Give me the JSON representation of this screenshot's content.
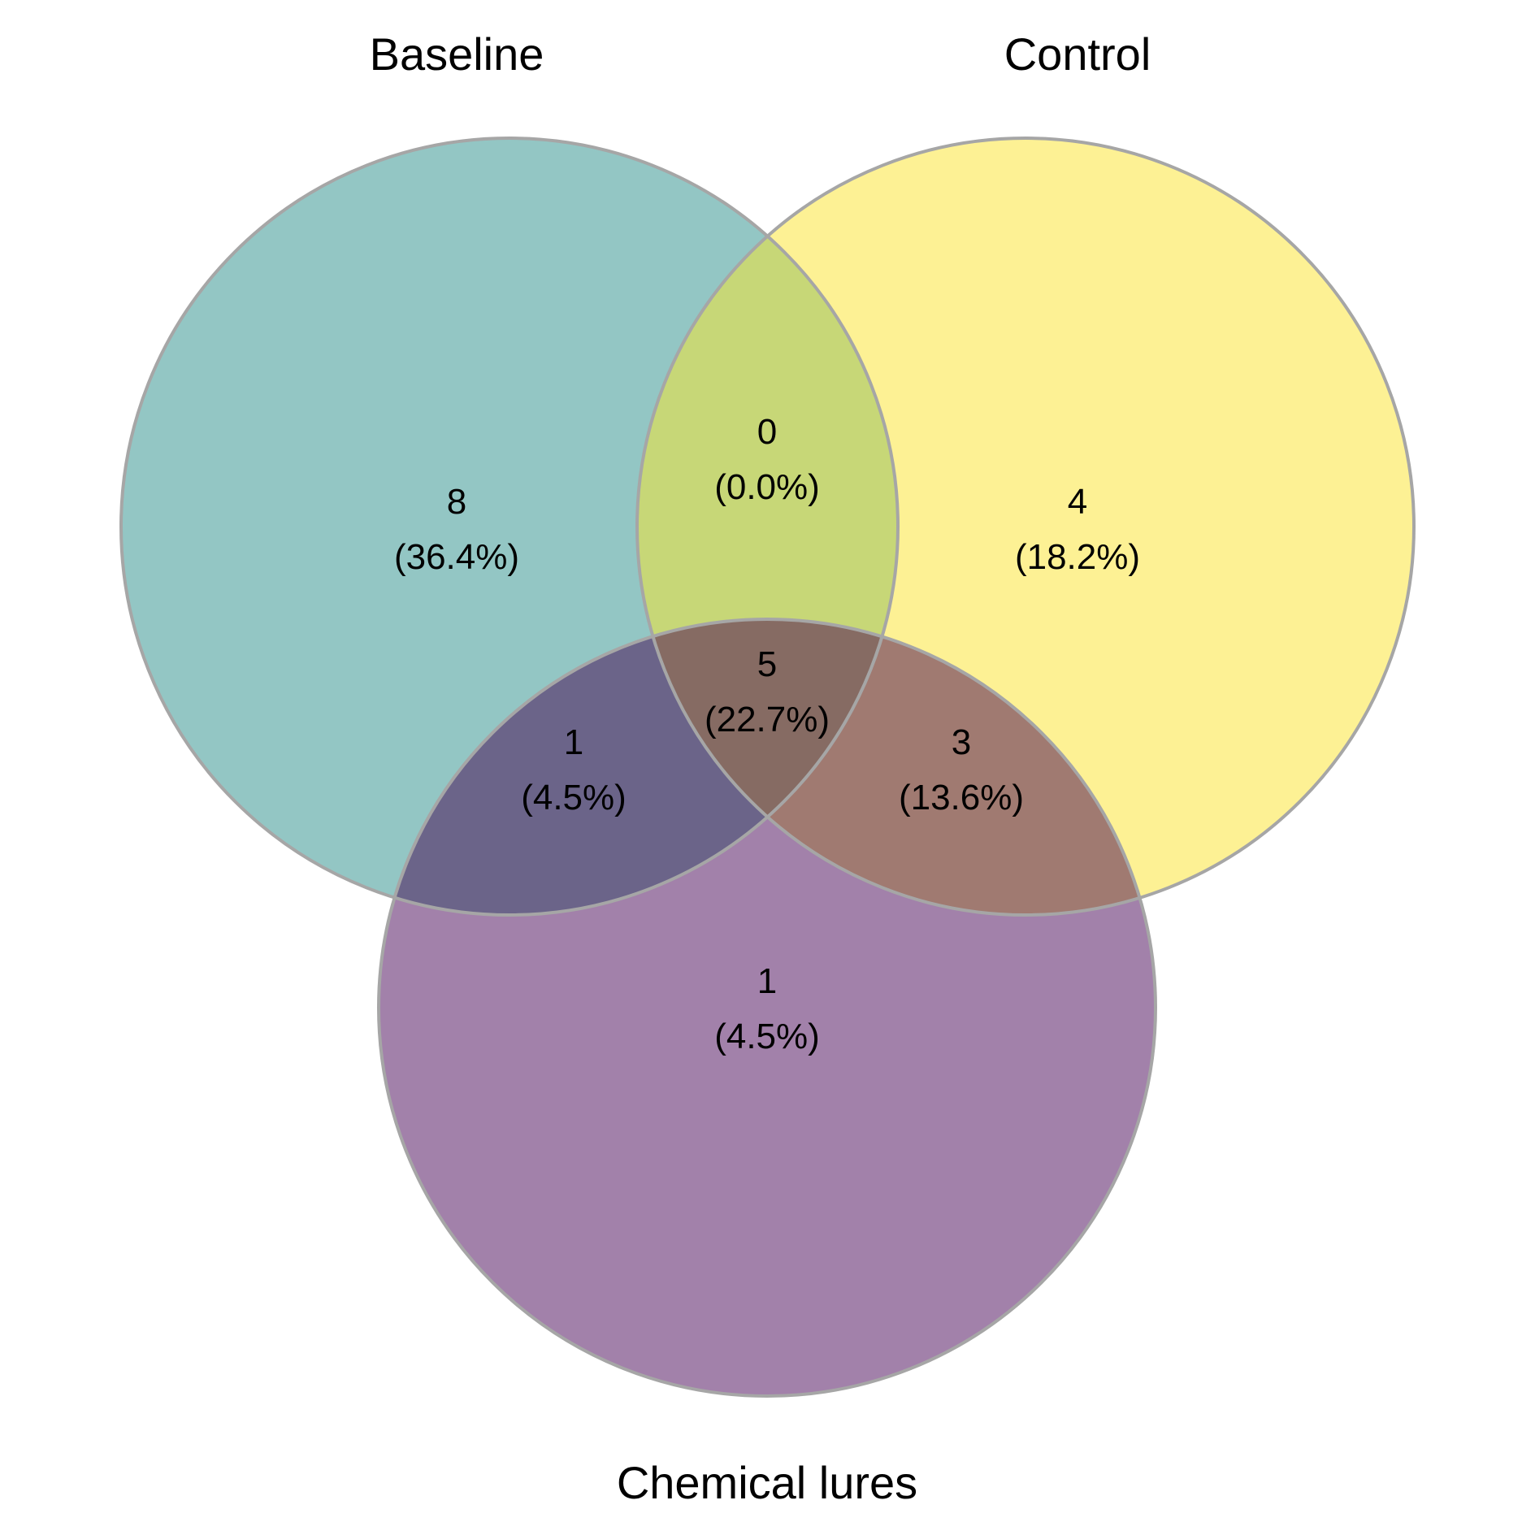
{
  "sets": [
    {
      "id": "A",
      "name": "Baseline",
      "color": "#93c6c4"
    },
    {
      "id": "B",
      "name": "Control",
      "color": "#fdf194"
    },
    {
      "id": "C",
      "name": "Chemical lures",
      "color": "#a281aa"
    }
  ],
  "regions": {
    "A_only": {
      "count": "8",
      "percent": "(36.4%)",
      "color": "#93c6c4"
    },
    "B_only": {
      "count": "4",
      "percent": "(18.2%)",
      "color": "#fdf194"
    },
    "C_only": {
      "count": "1",
      "percent": "(4.5%)",
      "color": "#a281aa"
    },
    "AB_only": {
      "count": "0",
      "percent": "(0.0%)",
      "color": "#c7d777"
    },
    "AC_only": {
      "count": "1",
      "percent": "(4.5%)",
      "color": "#6b6489"
    },
    "BC_only": {
      "count": "3",
      "percent": "(13.6%)",
      "color": "#a07a71"
    },
    "ABC": {
      "count": "5",
      "percent": "(22.7%)",
      "color": "#866b63"
    }
  },
  "outline_color": "#a6a6a6"
}
